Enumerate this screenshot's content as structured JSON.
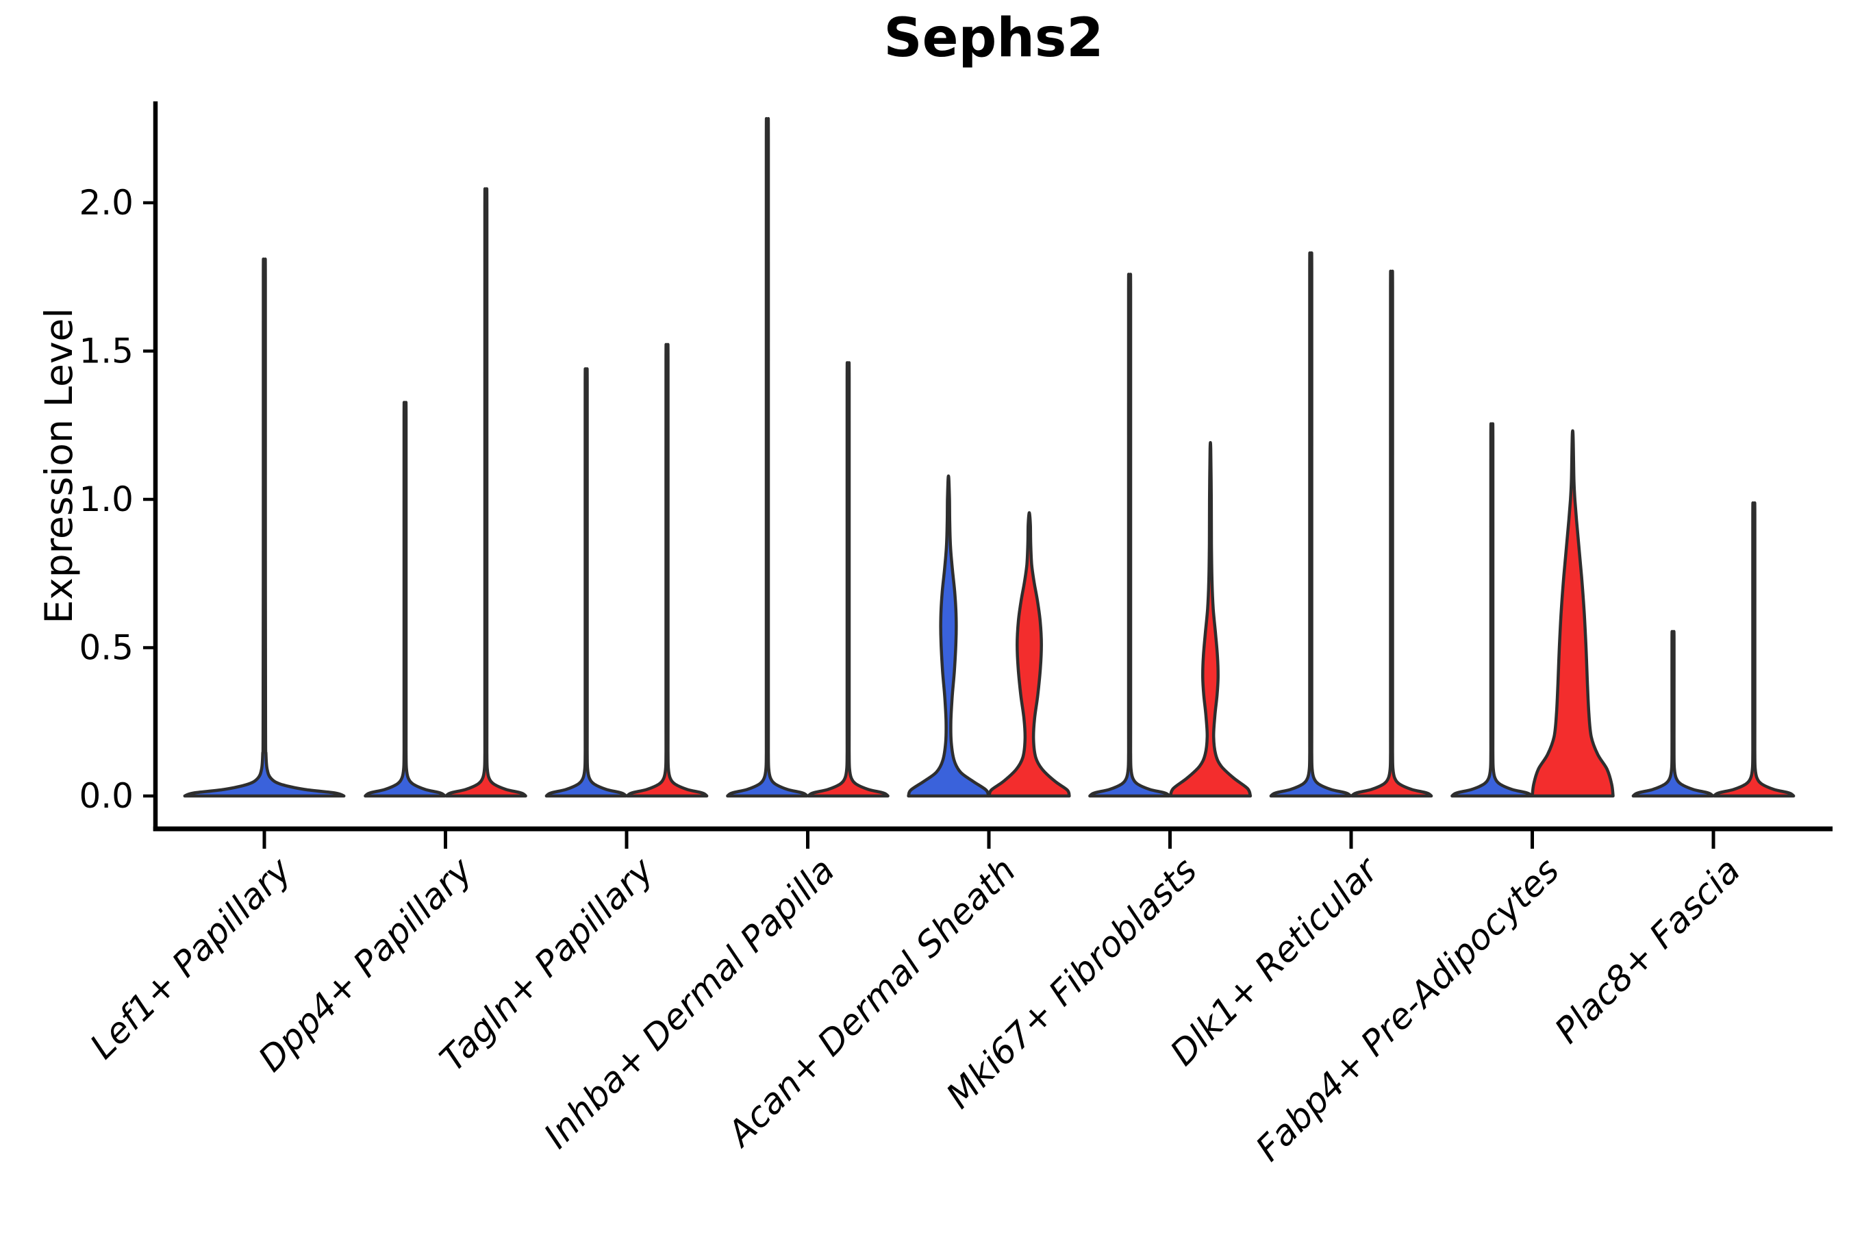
{
  "page": {
    "background": "#ffffff"
  },
  "chart_data": {
    "type": "violin",
    "title": "Sephs2",
    "ylabel": "Expression Level",
    "xlabel": "",
    "grid": false,
    "legend": "none",
    "ylim": [
      -0.115,
      2.34
    ],
    "yticks": [
      "0.0",
      "0.5",
      "1.0",
      "1.5",
      "2.0"
    ],
    "ytick_values": [
      0.0,
      0.5,
      1.0,
      1.5,
      2.0
    ],
    "xtick_rotation": 45,
    "categories": [
      "Lef1+ Papillary",
      "Dpp4+ Papillary",
      "Tagln+ Papillary",
      "Inhba+ Dermal Papilla",
      "Acan+ Dermal Sheath",
      "Mki67+ Fibroblasts",
      "Dlk1+ Reticular",
      "Fabp4+ Pre-Adipocytes",
      "Plac8+ Fascia"
    ],
    "colors": {
      "group1_fill": "#3a62db",
      "group2_fill": "#f32d2d",
      "violin_outline": "#2e2e2e",
      "axis": "#000000"
    },
    "violins": [
      {
        "category": "Lef1+ Papillary",
        "group": 1,
        "position": "full",
        "color": "#3a62db",
        "max_expression": 1.78,
        "shape": "spike"
      },
      {
        "category": "Dpp4+ Papillary",
        "group": 1,
        "position": "left",
        "color": "#3a62db",
        "max_expression": 1.31,
        "shape": "spike"
      },
      {
        "category": "Dpp4+ Papillary",
        "group": 2,
        "position": "right",
        "color": "#f32d2d",
        "max_expression": 2.01,
        "shape": "spike"
      },
      {
        "category": "Tagln+ Papillary",
        "group": 1,
        "position": "left",
        "color": "#3a62db",
        "max_expression": 1.42,
        "shape": "spike"
      },
      {
        "category": "Tagln+ Papillary",
        "group": 2,
        "position": "right",
        "color": "#f32d2d",
        "max_expression": 1.5,
        "shape": "spike"
      },
      {
        "category": "Inhba+ Dermal Papilla",
        "group": 1,
        "position": "left",
        "color": "#3a62db",
        "max_expression": 2.24,
        "shape": "spike"
      },
      {
        "category": "Inhba+ Dermal Papilla",
        "group": 2,
        "position": "right",
        "color": "#f32d2d",
        "max_expression": 1.44,
        "shape": "spike"
      },
      {
        "category": "Acan+ Dermal Sheath",
        "group": 1,
        "position": "left",
        "color": "#3a62db",
        "max_expression": 1.07,
        "shape": "bulged",
        "profile": [
          [
            0,
            0.99
          ],
          [
            0.02,
            0.93
          ],
          [
            0.05,
            0.6
          ],
          [
            0.08,
            0.3
          ],
          [
            0.12,
            0.14
          ],
          [
            0.18,
            0.07
          ],
          [
            0.25,
            0.06
          ],
          [
            0.33,
            0.09
          ],
          [
            0.42,
            0.145
          ],
          [
            0.52,
            0.185
          ],
          [
            0.6,
            0.19
          ],
          [
            0.68,
            0.16
          ],
          [
            0.76,
            0.1
          ],
          [
            0.84,
            0.05
          ],
          [
            0.92,
            0.032
          ],
          [
            1.0,
            0.025
          ],
          [
            1.07,
            0.005
          ]
        ]
      },
      {
        "category": "Acan+ Dermal Sheath",
        "group": 2,
        "position": "right",
        "color": "#f32d2d",
        "max_expression": 0.95,
        "shape": "bulged",
        "profile": [
          [
            0,
            0.99
          ],
          [
            0.02,
            0.94
          ],
          [
            0.05,
            0.63
          ],
          [
            0.09,
            0.32
          ],
          [
            0.13,
            0.16
          ],
          [
            0.19,
            0.105
          ],
          [
            0.26,
            0.13
          ],
          [
            0.34,
            0.21
          ],
          [
            0.43,
            0.275
          ],
          [
            0.51,
            0.3
          ],
          [
            0.59,
            0.27
          ],
          [
            0.66,
            0.2
          ],
          [
            0.72,
            0.12
          ],
          [
            0.78,
            0.06
          ],
          [
            0.85,
            0.035
          ],
          [
            0.91,
            0.028
          ],
          [
            0.95,
            0.005
          ]
        ]
      },
      {
        "category": "Mki67+ Fibroblasts",
        "group": 1,
        "position": "left",
        "color": "#3a62db",
        "max_expression": 1.73,
        "shape": "spike"
      },
      {
        "category": "Mki67+ Fibroblasts",
        "group": 2,
        "position": "right",
        "color": "#f32d2d",
        "max_expression": 1.17,
        "shape": "bulged",
        "profile": [
          [
            0,
            0.99
          ],
          [
            0.025,
            0.92
          ],
          [
            0.06,
            0.58
          ],
          [
            0.1,
            0.27
          ],
          [
            0.14,
            0.13
          ],
          [
            0.2,
            0.08
          ],
          [
            0.27,
            0.11
          ],
          [
            0.34,
            0.165
          ],
          [
            0.4,
            0.19
          ],
          [
            0.47,
            0.175
          ],
          [
            0.55,
            0.125
          ],
          [
            0.63,
            0.07
          ],
          [
            0.72,
            0.04
          ],
          [
            0.85,
            0.026
          ],
          [
            1.0,
            0.022
          ],
          [
            1.17,
            0.005
          ]
        ]
      },
      {
        "category": "Dlk1+ Reticular",
        "group": 1,
        "position": "left",
        "color": "#3a62db",
        "max_expression": 1.8,
        "shape": "spike"
      },
      {
        "category": "Dlk1+ Reticular",
        "group": 2,
        "position": "right",
        "color": "#f32d2d",
        "max_expression": 1.74,
        "shape": "spike"
      },
      {
        "category": "Fabp4+ Pre-Adipocytes",
        "group": 1,
        "position": "left",
        "color": "#3a62db",
        "max_expression": 1.24,
        "shape": "spike"
      },
      {
        "category": "Fabp4+ Pre-Adipocytes",
        "group": 2,
        "position": "right",
        "color": "#f32d2d",
        "max_expression": 1.22,
        "shape": "bulged",
        "profile": [
          [
            0,
            1.0
          ],
          [
            0.04,
            0.965
          ],
          [
            0.09,
            0.85
          ],
          [
            0.14,
            0.62
          ],
          [
            0.2,
            0.46
          ],
          [
            0.28,
            0.4
          ],
          [
            0.38,
            0.365
          ],
          [
            0.5,
            0.33
          ],
          [
            0.62,
            0.285
          ],
          [
            0.74,
            0.22
          ],
          [
            0.84,
            0.155
          ],
          [
            0.93,
            0.095
          ],
          [
            1.0,
            0.055
          ],
          [
            1.06,
            0.032
          ],
          [
            1.13,
            0.022
          ],
          [
            1.22,
            0.005
          ]
        ]
      },
      {
        "category": "Plac8+ Fascia",
        "group": 1,
        "position": "left",
        "color": "#3a62db",
        "max_expression": 0.55,
        "shape": "spike"
      },
      {
        "category": "Plac8+ Fascia",
        "group": 2,
        "position": "right",
        "color": "#f32d2d",
        "max_expression": 0.98,
        "shape": "spike"
      }
    ]
  }
}
